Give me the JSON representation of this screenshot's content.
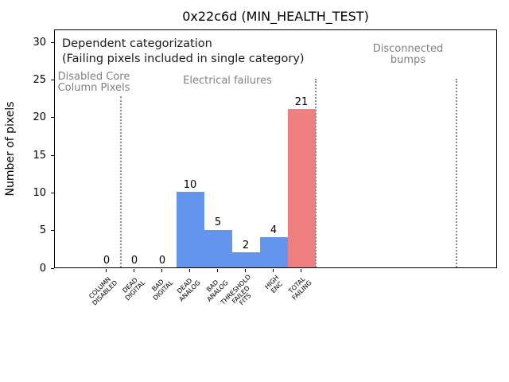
{
  "chart_data": {
    "type": "bar",
    "title": "0x22c6d (MIN_HEALTH_TEST)",
    "ylabel": "Number of pixels",
    "xlabel": "",
    "categories": [
      "COLUMN\nDISABLED",
      "DEAD\nDIGITAL",
      "BAD\nDIGITAL",
      "DEAD\nANALOG",
      "BAD\nANALOG",
      "THRESHOLD\nFAILED\nFITS",
      "HIGH\nENC",
      "TOTAL\nFAILING"
    ],
    "values": [
      0,
      0,
      0,
      10,
      5,
      2,
      4,
      21
    ],
    "bar_value_labels": [
      "0",
      "0",
      "0",
      "10",
      "5",
      "2",
      "4",
      "21"
    ],
    "bar_colors": [
      "#6495ed",
      "#6495ed",
      "#6495ed",
      "#6495ed",
      "#6495ed",
      "#6495ed",
      "#6495ed",
      "#f08080"
    ],
    "yticks": [
      0,
      5,
      10,
      15,
      20,
      25,
      30
    ],
    "ylim": [
      0,
      31.7
    ],
    "grid": false,
    "legend": "none",
    "annotations": {
      "line1": "Dependent categorization",
      "line2": "(Failing pixels included in single category)",
      "sections": [
        {
          "label": "Disabled Core\nColumn Pixels"
        },
        {
          "label": "Electrical failures"
        },
        {
          "label": "Disconnected\nbumps"
        }
      ]
    },
    "colors": {
      "bar_default": "#6495ed",
      "bar_total": "#f08080",
      "section_text": "#808080",
      "separator_line": "#8c8c8c"
    }
  }
}
